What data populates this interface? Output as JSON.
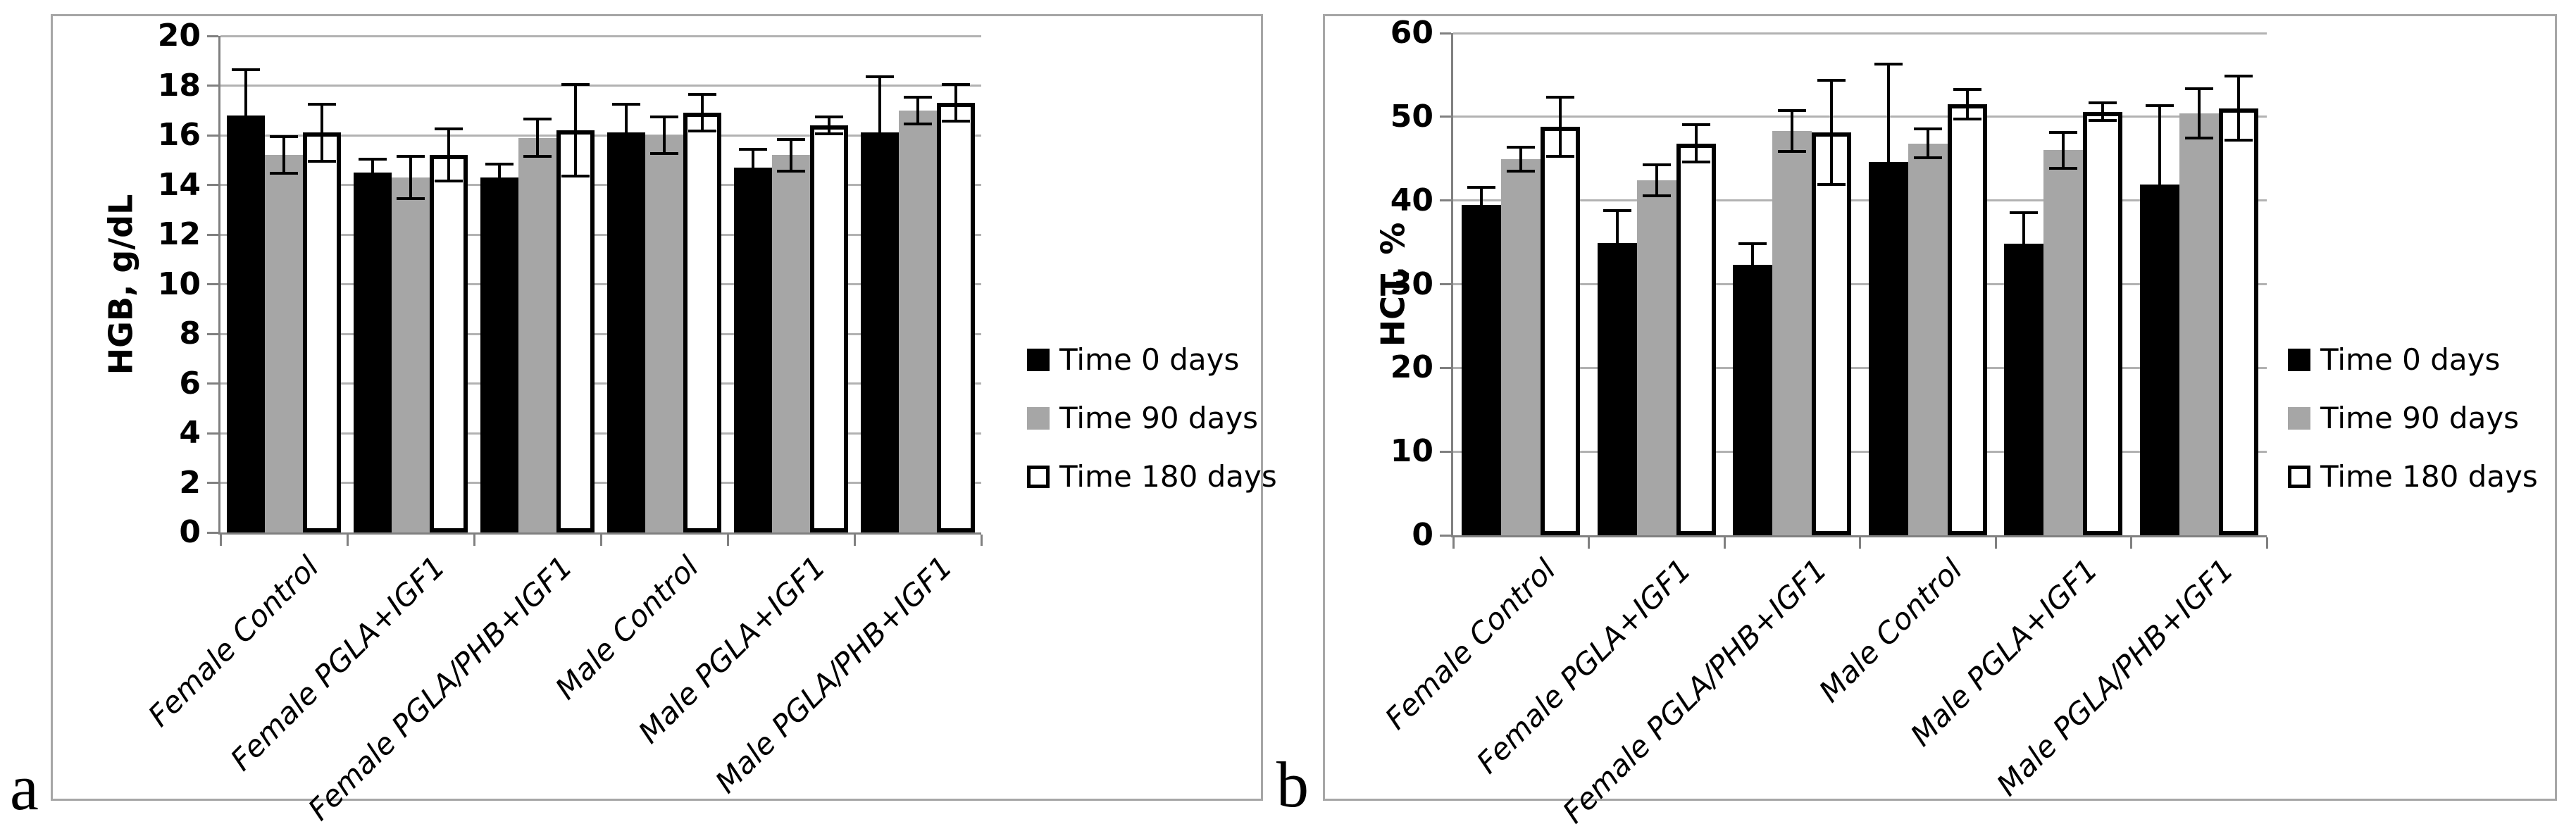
{
  "figure": {
    "background": "#ffffff",
    "panel_border_color": "#a6a6a6",
    "gridline_color": "#b2b2b2",
    "axis_color": "#808080",
    "bar_black": "#000000",
    "bar_gray": "#a6a6a6",
    "bar_white": "#ffffff"
  },
  "chart_data": [
    {
      "type": "bar",
      "panel_label": "a",
      "ylabel": "HGB, g/dL",
      "xlabel": "",
      "ylim": [
        0,
        20
      ],
      "ytick_step": 2,
      "yticks": [
        0,
        2,
        4,
        6,
        8,
        10,
        12,
        14,
        16,
        18,
        20
      ],
      "grid": true,
      "legend_position": "right",
      "categories": [
        "Female Control",
        "Female PGLA+IGF1",
        "Female PGLA/PHB+IGF1",
        "Male Control",
        "Male PGLA+IGF1",
        "Male PGLA/PHB+IGF1"
      ],
      "series": [
        {
          "name": "Time 0 days",
          "fill": "#000000",
          "outline": false,
          "values": [
            16.8,
            14.5,
            14.3,
            16.1,
            14.7,
            16.1
          ],
          "errors": [
            1.9,
            0.6,
            0.6,
            1.2,
            0.8,
            2.3
          ]
        },
        {
          "name": "Time 90 days",
          "fill": "#a6a6a6",
          "outline": false,
          "values": [
            15.2,
            14.3,
            15.9,
            16.0,
            15.2,
            17.0
          ],
          "errors": [
            0.8,
            0.9,
            0.8,
            0.8,
            0.7,
            0.6
          ]
        },
        {
          "name": "Time 180 days",
          "fill": "#ffffff",
          "outline": true,
          "values": [
            16.1,
            15.2,
            16.2,
            16.9,
            16.4,
            17.3
          ],
          "errors": [
            1.2,
            1.1,
            1.9,
            0.8,
            0.4,
            0.8
          ]
        }
      ]
    },
    {
      "type": "bar",
      "panel_label": "b",
      "ylabel": "HCT, %",
      "xlabel": "",
      "ylim": [
        0,
        60
      ],
      "ytick_step": 10,
      "yticks": [
        0,
        10,
        20,
        30,
        40,
        50,
        60
      ],
      "grid": true,
      "legend_position": "right",
      "categories": [
        "Female Control",
        "Female PGLA+IGF1",
        "Female PGLA/PHB+IGF1",
        "Male Control",
        "Male PGLA+IGF1",
        "Male PGLA/PHB+IGF1"
      ],
      "series": [
        {
          "name": "Time 0 days",
          "fill": "#000000",
          "outline": false,
          "values": [
            39.5,
            34.9,
            32.3,
            44.6,
            34.8,
            41.9
          ],
          "errors": [
            2.2,
            4.1,
            2.7,
            11.9,
            3.9,
            9.6
          ]
        },
        {
          "name": "Time 90 days",
          "fill": "#a6a6a6",
          "outline": false,
          "values": [
            44.9,
            42.4,
            48.3,
            46.8,
            46.0,
            50.4
          ],
          "errors": [
            1.6,
            2.0,
            2.6,
            1.9,
            2.3,
            3.1
          ]
        },
        {
          "name": "Time 180 days",
          "fill": "#ffffff",
          "outline": true,
          "values": [
            48.8,
            46.8,
            48.1,
            51.5,
            50.6,
            51.0
          ],
          "errors": [
            3.7,
            2.4,
            6.4,
            1.9,
            1.2,
            4.0
          ]
        }
      ]
    }
  ]
}
